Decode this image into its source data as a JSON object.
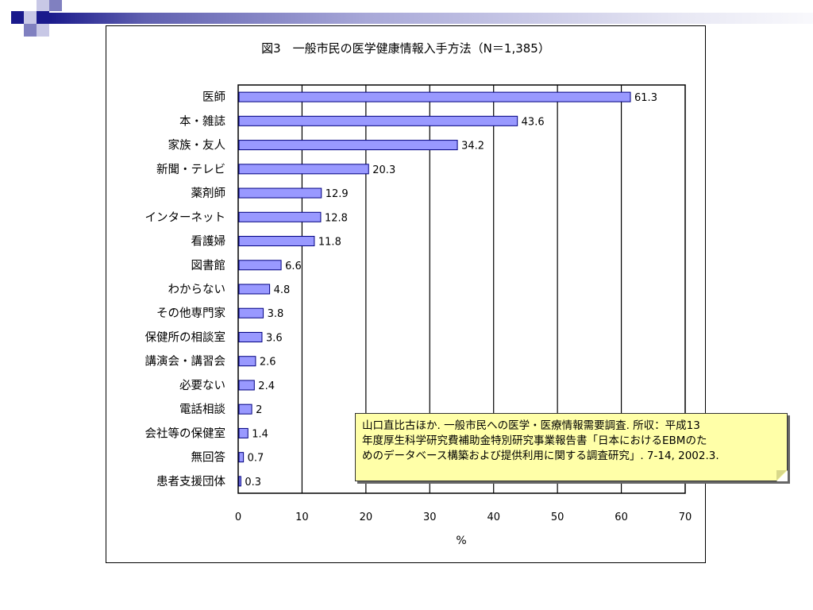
{
  "colors": {
    "bar_fill": "#9999ff",
    "bar_stroke": "#000080",
    "note_bg": "#ffffa8",
    "band_dark": "#1a1a8c",
    "band_mid": "#8080c0",
    "band_light": "#c8c8e6"
  },
  "chart_data": {
    "type": "bar",
    "orientation": "horizontal",
    "title": "図3　一般市民の医学健康情報入手方法（N＝1,385）",
    "xlabel": "%",
    "ylabel": "",
    "xlim": [
      0,
      70
    ],
    "x_ticks": [
      0,
      10,
      20,
      30,
      40,
      50,
      60,
      70
    ],
    "grid": "vertical",
    "categories": [
      "医師",
      "本・雑誌",
      "家族・友人",
      "新聞・テレビ",
      "薬剤師",
      "インターネット",
      "看護婦",
      "図書館",
      "わからない",
      "その他専門家",
      "保健所の相談室",
      "講演会・講習会",
      "必要ない",
      "電話相談",
      "会社等の保健室",
      "無回答",
      "患者支援団体"
    ],
    "values": [
      61.3,
      43.6,
      34.2,
      20.3,
      12.9,
      12.8,
      11.8,
      6.6,
      4.8,
      3.8,
      3.6,
      2.6,
      2.4,
      2,
      1.4,
      0.7,
      0.3
    ]
  },
  "note": {
    "lines": [
      "山口直比古ほか. 一般市民への医学・医療情報需要調査. 所収：平成13",
      "年度厚生科学研究費補助金特別研究事業報告書「日本におけるEBMのた",
      "めのデータベース構築および提供利用に関する調査研究」. 7-14, 2002.3."
    ]
  }
}
